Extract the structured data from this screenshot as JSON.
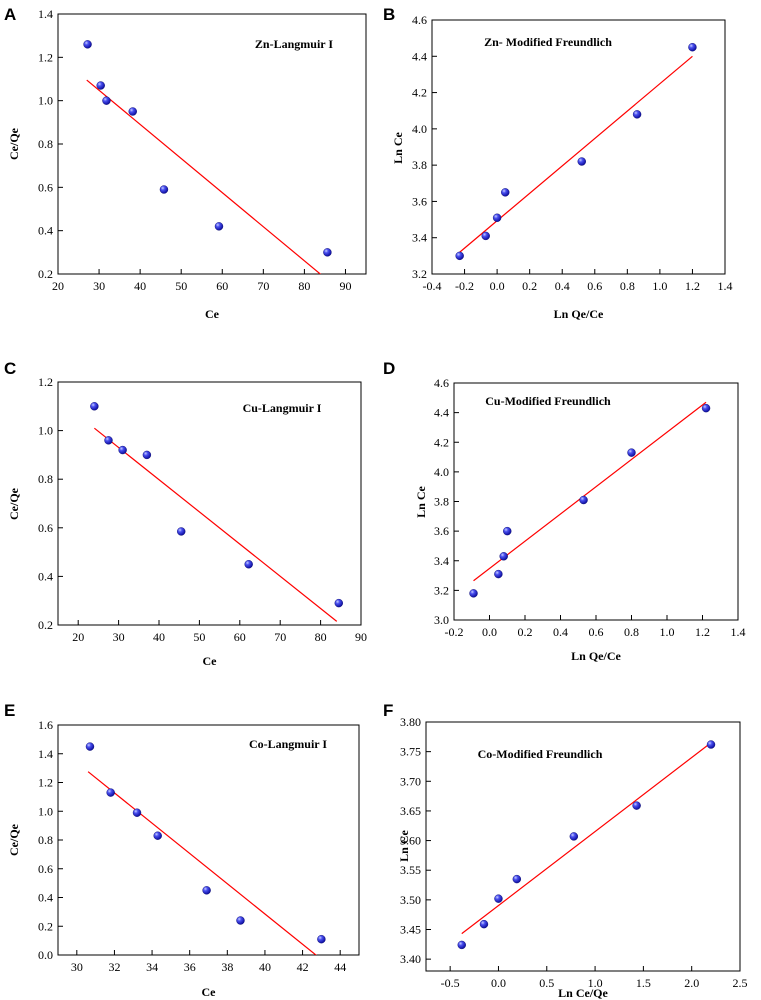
{
  "colors": {
    "point": "#1a1adf",
    "point_highlight": "#9da6ff",
    "fit_line": "#ff0000"
  },
  "chart_data": [
    {
      "panel": "A",
      "type": "scatter",
      "title": "Zn-Langmuir I",
      "xlabel": "Ce",
      "ylabel": "Ce/Qe",
      "xlim": [
        20,
        95
      ],
      "ylim": [
        0.2,
        1.4
      ],
      "xticks": [
        "20",
        "30",
        "40",
        "50",
        "60",
        "70",
        "80",
        "90"
      ],
      "yticks": [
        "0.2",
        "0.4",
        "0.6",
        "0.8",
        "1.0",
        "1.2",
        "1.4"
      ],
      "x": [
        27.2,
        30.4,
        31.8,
        38.2,
        45.8,
        59.2,
        85.6
      ],
      "y": [
        1.26,
        1.07,
        1.0,
        0.95,
        0.59,
        0.42,
        0.3
      ],
      "fit": [
        [
          27,
          1.095
        ],
        [
          84.5,
          0.19
        ]
      ]
    },
    {
      "panel": "B",
      "type": "scatter",
      "title": "Zn- Modified Freundlich",
      "xlabel": "Ln Qe/Ce",
      "ylabel": "Ln Ce",
      "xlim": [
        -0.4,
        1.4
      ],
      "ylim": [
        3.2,
        4.6
      ],
      "xticks": [
        "-0.4",
        "-0.2",
        "0.0",
        "0.2",
        "0.4",
        "0.6",
        "0.8",
        "1.0",
        "1.2",
        "1.4"
      ],
      "yticks": [
        "3.2",
        "3.4",
        "3.6",
        "3.8",
        "4.0",
        "4.2",
        "4.4",
        "4.6"
      ],
      "x": [
        -0.23,
        -0.07,
        0.0,
        0.05,
        0.52,
        0.86,
        1.2
      ],
      "y": [
        3.3,
        3.41,
        3.51,
        3.65,
        3.82,
        4.08,
        4.45
      ],
      "fit": [
        [
          -0.23,
          3.32
        ],
        [
          1.2,
          4.4
        ]
      ]
    },
    {
      "panel": "C",
      "type": "scatter",
      "title": "Cu-Langmuir I",
      "xlabel": "Ce",
      "ylabel": "Ce/Qe",
      "xlim": [
        15,
        90
      ],
      "ylim": [
        0.2,
        1.2
      ],
      "xticks": [
        "20",
        "30",
        "40",
        "50",
        "60",
        "70",
        "80",
        "90"
      ],
      "yticks": [
        "0.2",
        "0.4",
        "0.6",
        "0.8",
        "1.0",
        "1.2"
      ],
      "x": [
        24.0,
        27.5,
        31.0,
        37.0,
        45.5,
        62.2,
        84.5
      ],
      "y": [
        1.1,
        0.96,
        0.92,
        0.9,
        0.585,
        0.45,
        0.29
      ],
      "fit": [
        [
          24,
          1.01
        ],
        [
          84,
          0.215
        ]
      ]
    },
    {
      "panel": "D",
      "type": "scatter",
      "title": "Cu-Modified Freundlich",
      "xlabel": "Ln Qe/Ce",
      "ylabel": "Ln Ce",
      "xlim": [
        -0.2,
        1.4
      ],
      "ylim": [
        3.0,
        4.6
      ],
      "xticks": [
        "-0.2",
        "0.0",
        "0.2",
        "0.4",
        "0.6",
        "0.8",
        "1.0",
        "1.2",
        "1.4"
      ],
      "yticks": [
        "3.0",
        "3.2",
        "3.4",
        "3.6",
        "3.8",
        "4.0",
        "4.2",
        "4.4",
        "4.6"
      ],
      "x": [
        -0.09,
        0.05,
        0.08,
        0.1,
        0.53,
        0.8,
        1.22
      ],
      "y": [
        3.18,
        3.31,
        3.43,
        3.6,
        3.81,
        4.13,
        4.43
      ],
      "fit": [
        [
          -0.09,
          3.265
        ],
        [
          1.22,
          4.47
        ]
      ]
    },
    {
      "panel": "E",
      "type": "scatter",
      "title": "Co-Langmuir I",
      "xlabel": "Ce",
      "ylabel": "Ce/Qe",
      "xlim": [
        29,
        45
      ],
      "ylim": [
        0.0,
        1.6
      ],
      "xticks": [
        "30",
        "32",
        "34",
        "36",
        "38",
        "40",
        "42",
        "44"
      ],
      "yticks": [
        "0.0",
        "0.2",
        "0.4",
        "0.6",
        "0.8",
        "1.0",
        "1.2",
        "1.4",
        "1.6"
      ],
      "x": [
        30.7,
        31.8,
        33.2,
        34.3,
        36.9,
        38.7,
        43.0
      ],
      "y": [
        1.45,
        1.13,
        0.99,
        0.83,
        0.45,
        0.24,
        0.11
      ],
      "fit": [
        [
          30.6,
          1.275
        ],
        [
          42.9,
          -0.02
        ]
      ]
    },
    {
      "panel": "F",
      "type": "scatter",
      "title": "Co-Modified Freundlich",
      "xlabel": "Ln Ce/Qe",
      "ylabel": "Ln Ce",
      "xlim": [
        -0.75,
        2.5
      ],
      "ylim": [
        3.38,
        3.8
      ],
      "xticks": [
        "-0.5",
        "0.0",
        "0.5",
        "1.0",
        "1.5",
        "2.0",
        "2.5"
      ],
      "yticks": [
        "3.40",
        "3.45",
        "3.50",
        "3.55",
        "3.60",
        "3.65",
        "3.70",
        "3.75",
        "3.80"
      ],
      "x": [
        -0.38,
        -0.15,
        0.0,
        0.19,
        0.78,
        1.43,
        2.2
      ],
      "y": [
        3.424,
        3.459,
        3.502,
        3.535,
        3.607,
        3.659,
        3.762
      ],
      "fit": [
        [
          -0.38,
          3.443
        ],
        [
          2.2,
          3.765
        ]
      ]
    }
  ]
}
